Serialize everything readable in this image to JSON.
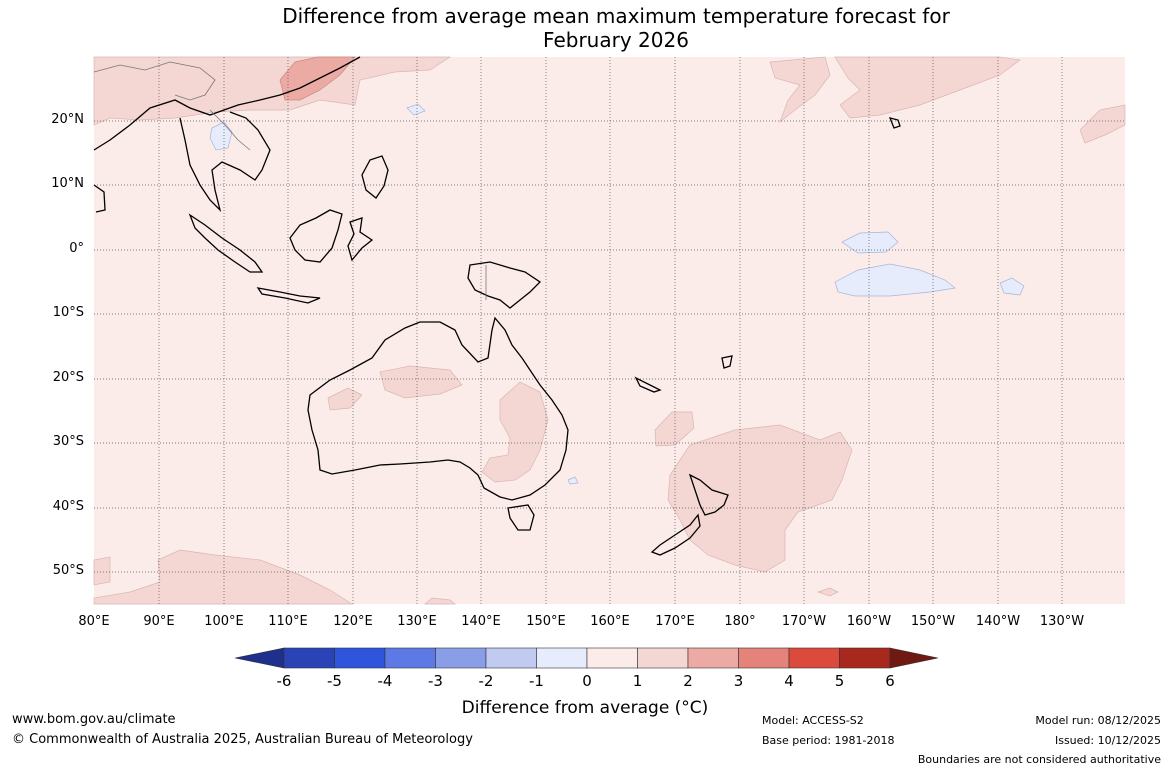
{
  "title_line1": "Difference from average mean maximum temperature forecast for",
  "title_line2": "February 2026",
  "lat_ticks": [
    "20°N",
    "10°N",
    "0°",
    "10°S",
    "20°S",
    "30°S",
    "40°S",
    "50°S"
  ],
  "lon_ticks": [
    "80°E",
    "90°E",
    "100°E",
    "110°E",
    "120°E",
    "130°E",
    "140°E",
    "150°E",
    "160°E",
    "170°E",
    "180°",
    "170°W",
    "160°W",
    "150°W",
    "140°W",
    "130°W"
  ],
  "colorbar": {
    "ticks": [
      "-6",
      "-5",
      "-4",
      "-3",
      "-2",
      "-1",
      "0",
      "1",
      "2",
      "3",
      "4",
      "5",
      "6"
    ],
    "colors": [
      "#1e2f8c",
      "#2a44b8",
      "#2f55dc",
      "#5c79e6",
      "#8a9ee8",
      "#c1cbf2",
      "#e6ecfb",
      "#fbecea",
      "#f4d6d2",
      "#ecaaa4",
      "#e4837a",
      "#dc4a3c",
      "#a8281e",
      "#6e1a12"
    ],
    "title": "Difference from average (°C)"
  },
  "map": {
    "background_anomaly_range": "0 to 1",
    "ocean_color": "#fbecea"
  },
  "footer": {
    "website": "www.bom.gov.au/climate",
    "copyright": "© Commonwealth of Australia 2025, Australian Bureau of Meteorology",
    "model": "Model: ACCESS-S2",
    "base_period": "Base period: 1981-2018",
    "model_run": "Model run: 08/12/2025",
    "issued": "Issued: 10/12/2025",
    "disclaimer": "Boundaries are not considered authoritative"
  }
}
